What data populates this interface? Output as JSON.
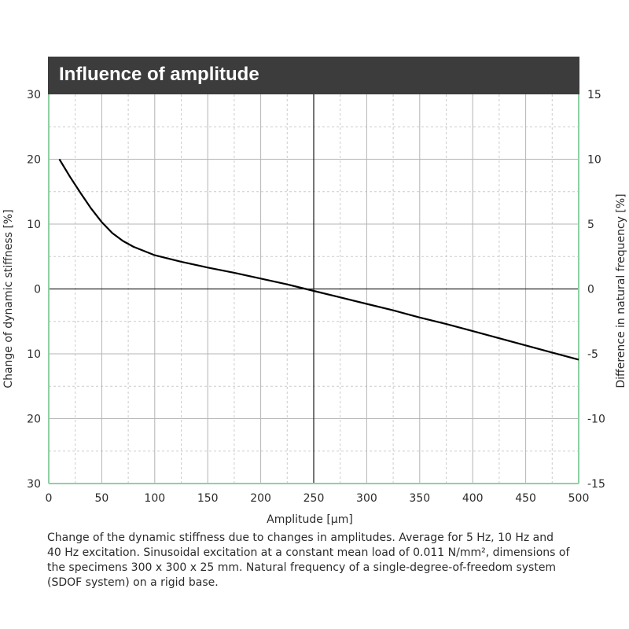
{
  "chart_data": {
    "type": "line",
    "title": "Influence of amplitude",
    "xlabel": "Amplitude [µm]",
    "ylabel": "Change of dynamic stiffness [%]",
    "y2label": "Difference in natural frequency [%]",
    "xlim": [
      0,
      500
    ],
    "ylim": [
      -30,
      30
    ],
    "y2lim": [
      -15,
      15
    ],
    "x_ticks": [
      "0",
      "50",
      "100",
      "150",
      "200",
      "250",
      "300",
      "350",
      "400",
      "450",
      "500"
    ],
    "y_ticks": [
      "30",
      "20",
      "10",
      "0",
      "10",
      "20",
      "30"
    ],
    "y2_ticks": [
      "15",
      "10",
      "5",
      "0",
      "-5",
      "-10",
      "-15"
    ],
    "grid": true,
    "series": [
      {
        "x": [
          10,
          20,
          30,
          40,
          50,
          60,
          70,
          80,
          100,
          125,
          150,
          175,
          200,
          225,
          250,
          275,
          300,
          325,
          350,
          375,
          400,
          425,
          450,
          475,
          500
        ],
        "y": [
          20,
          17.3,
          14.8,
          12.4,
          10.3,
          8.6,
          7.4,
          6.5,
          5.2,
          4.2,
          3.3,
          2.5,
          1.6,
          0.7,
          -0.3,
          -1.3,
          -2.3,
          -3.3,
          -4.4,
          -5.4,
          -6.5,
          -7.6,
          -8.7,
          -9.8,
          -10.9
        ],
        "color": "#000000"
      }
    ],
    "colors": {
      "axis_frame": "#8fd0a4",
      "grid_major": "#b4b4b4",
      "grid_minor": "#cccccc",
      "title_bg": "#3c3c3c"
    }
  },
  "caption": [
    "Change of the dynamic stiffness due to changes in amplitudes. Average for 5 Hz, 10 Hz and",
    "40 Hz excitation. Sinusoidal excitation at a constant mean load of 0.011 N/mm², dimensions of",
    "the specimens 300 x 300 x 25 mm. Natural frequency of a single-degree-of-freedom system",
    "(SDOF system) on a rigid base."
  ]
}
